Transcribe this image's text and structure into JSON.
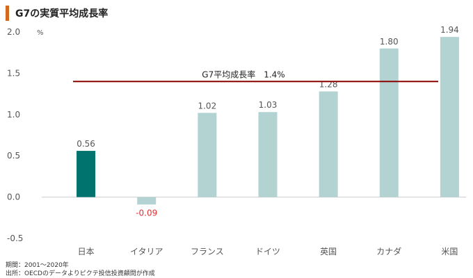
{
  "title": "G7の実質平均成長率",
  "chart_data": {
    "type": "bar",
    "categories": [
      "日本",
      "イタリア",
      "フランス",
      "ドイツ",
      "英国",
      "カナダ",
      "米国"
    ],
    "values": [
      0.56,
      -0.09,
      1.02,
      1.03,
      1.28,
      1.8,
      1.94
    ],
    "value_labels": [
      "0.56",
      "-0.09",
      "1.02",
      "1.03",
      "1.28",
      "1.80",
      "1.94"
    ],
    "highlight_index": 0,
    "ylim": [
      -0.5,
      2.0
    ],
    "yticks": [
      2.0,
      1.5,
      1.0,
      0.5,
      0.0,
      -0.5
    ],
    "ytick_labels": [
      "2.0",
      "1.5",
      "1.0",
      "0.5",
      "0.0",
      "-0.5"
    ],
    "y_unit": "%",
    "reference_line": {
      "value": 1.4,
      "label": "G7平均成長率　1.4%"
    },
    "colors": {
      "bar": "#b3d3d3",
      "highlight_bar": "#00736e",
      "reference_line": "#8b0000",
      "negative_label": "#e03030",
      "label": "#555555",
      "axis": "#cccccc"
    }
  },
  "footnotes": {
    "period": "期間：2001～2020年",
    "source": "出所：OECDのデータよりピクテ投信投資顧問が作成"
  }
}
